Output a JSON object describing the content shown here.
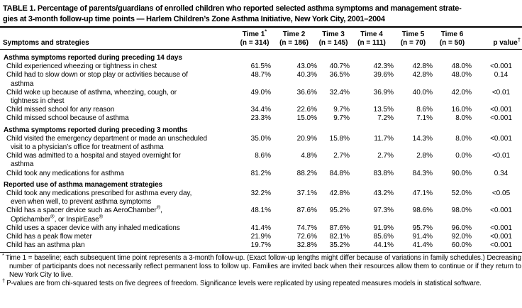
{
  "title": {
    "line1": "TABLE 1. Percentage of parents/guardians of enrolled children who reported selected asthma symptoms and management strate-",
    "line2": "gies at 3-month follow-up time points — Harlem Children’s Zone Asthma Initiative, New York City, 2001–2004"
  },
  "header": {
    "label": "Symptoms and strategies",
    "columns": [
      {
        "line1": "Time 1",
        "sup": "*",
        "line2": "(n = 314)"
      },
      {
        "line1": "Time 2",
        "sup": "",
        "line2": "(n = 186)"
      },
      {
        "line1": "Time 3",
        "sup": "",
        "line2": "(n = 145)"
      },
      {
        "line1": "Time 4",
        "sup": "",
        "line2": "(n = 111)"
      },
      {
        "line1": "Time 5",
        "sup": "",
        "line2": "(n = 70)"
      },
      {
        "line1": "Time 6",
        "sup": "",
        "line2": "(n = 50)"
      }
    ],
    "p_label": "p value",
    "p_sup": "†"
  },
  "sections": [
    {
      "heading": "Asthma symptoms reported during preceding 14 days",
      "rows": [
        {
          "label_lines": [
            "Child experienced wheezing or tightness in chest"
          ],
          "values": [
            "61.5%",
            "43.0%",
            "40.7%",
            "42.3%",
            "42.8%",
            "48.0%"
          ],
          "p": "<0.001"
        },
        {
          "label_lines": [
            "Child had to slow down or stop play or activities because of",
            "asthma"
          ],
          "values": [
            "48.7%",
            "40.3%",
            "36.5%",
            "39.6%",
            "42.8%",
            "48.0%"
          ],
          "p": "0.14"
        },
        {
          "label_lines": [
            "Child woke up because of asthma, wheezing, cough, or",
            "tightness in chest"
          ],
          "values": [
            "49.0%",
            "36.6%",
            "32.4%",
            "36.9%",
            "40.0%",
            "42.0%"
          ],
          "p": "<0.01"
        },
        {
          "label_lines": [
            "Child missed school for any reason"
          ],
          "values": [
            "34.4%",
            "22.6%",
            "9.7%",
            "13.5%",
            "8.6%",
            "16.0%"
          ],
          "p": "<0.001"
        },
        {
          "label_lines": [
            "Child missed school because of asthma"
          ],
          "values": [
            "23.3%",
            "15.0%",
            "9.7%",
            "7.2%",
            "7.1%",
            "8.0%"
          ],
          "p": "<0.001"
        }
      ]
    },
    {
      "heading": "Asthma symptoms reported during preceding 3 months",
      "rows": [
        {
          "label_lines": [
            "Child visited the emergency department or made an unscheduled",
            "visit to a physician’s office for treatment of asthma"
          ],
          "values": [
            "35.0%",
            "20.9%",
            "15.8%",
            "11.7%",
            "14.3%",
            "8.0%"
          ],
          "p": "<0.001"
        },
        {
          "label_lines": [
            "Child was admitted to a hospital and stayed overnight for",
            "asthma"
          ],
          "values": [
            "8.6%",
            "4.8%",
            "2.7%",
            "2.7%",
            "2.8%",
            "0.0%"
          ],
          "p": "<0.01"
        },
        {
          "label_lines": [
            "Child took any medications for asthma"
          ],
          "values": [
            "81.2%",
            "88.2%",
            "84.8%",
            "83.8%",
            "84.3%",
            "90.0%"
          ],
          "p": "0.34"
        }
      ]
    },
    {
      "heading": "Reported use of asthma management strategies",
      "rows": [
        {
          "label_lines": [
            "Child took any medications prescribed for asthma every day,",
            "even when well, to prevent asthma symptoms"
          ],
          "values": [
            "32.2%",
            "37.1%",
            "42.8%",
            "43.2%",
            "47.1%",
            "52.0%"
          ],
          "p": "<0.05"
        },
        {
          "label_lines": [
            "Child has a spacer device such as AeroChamber®,",
            "Optichamber®, or InspirEase®"
          ],
          "values": [
            "48.1%",
            "87.6%",
            "95.2%",
            "97.3%",
            "98.6%",
            "98.0%"
          ],
          "p": "<0.001"
        },
        {
          "label_lines": [
            "Child uses a spacer device with any inhaled medications"
          ],
          "values": [
            "41.4%",
            "74.7%",
            "87.6%",
            "91.9%",
            "95.7%",
            "96.0%"
          ],
          "p": "<0.001"
        },
        {
          "label_lines": [
            "Child has a peak flow meter"
          ],
          "values": [
            "21.9%",
            "72.6%",
            "82.1%",
            "85.6%",
            "91.4%",
            "92.0%"
          ],
          "p": "<0.001"
        },
        {
          "label_lines": [
            "Child has an asthma plan"
          ],
          "values": [
            "19.7%",
            "32.8%",
            "35.2%",
            "44.1%",
            "41.4%",
            "60.0%"
          ],
          "p": "<0.001"
        }
      ]
    }
  ],
  "footnotes": [
    {
      "marker": "*",
      "text": "Time 1 = baseline; each subsequent time point represents a 3-month follow-up. (Exact follow-up lengths might differ because of variations in family schedules.) Decreasing number of participants does not necessarily reflect permanent loss to follow up. Families are invited back when their resources allow them to continue or if they return to New York City to live."
    },
    {
      "marker": "†",
      "text": "P-values are from chi-squared tests on five degrees of freedom. Significance levels were replicated by using repeated measures models in statistical software."
    }
  ]
}
